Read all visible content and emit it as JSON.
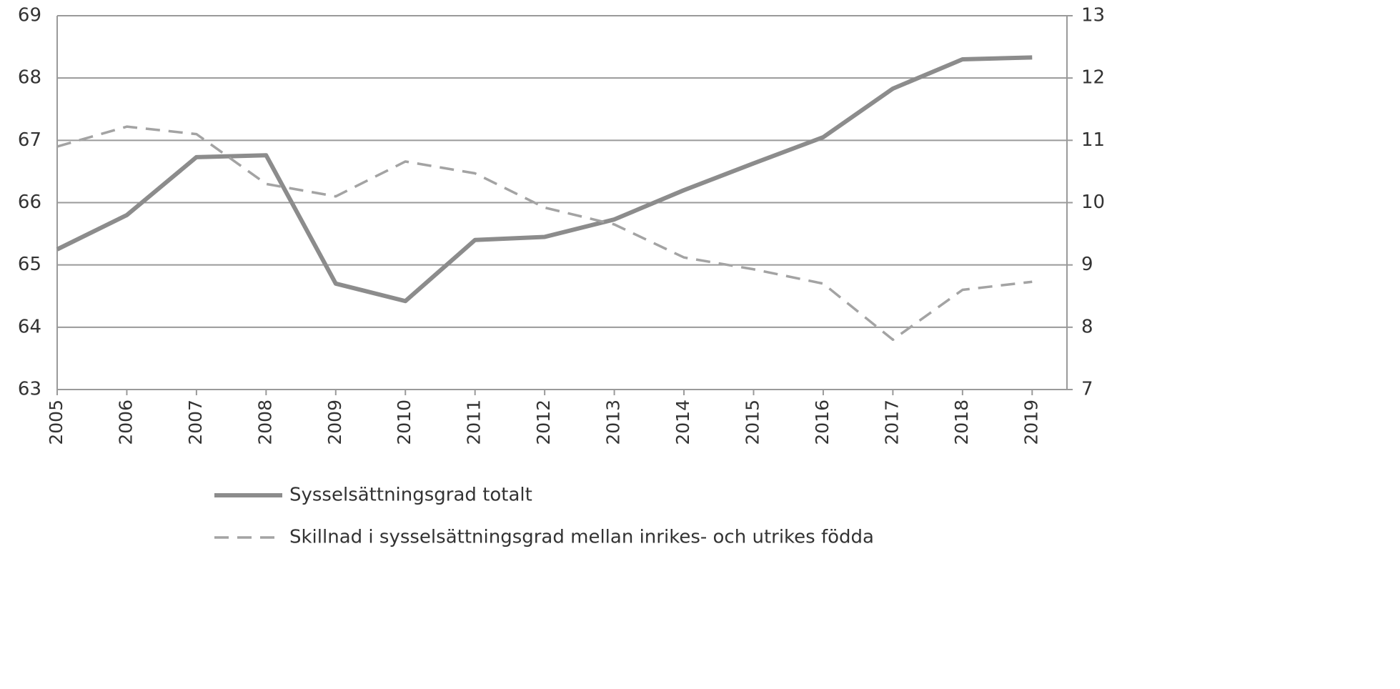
{
  "chart_data": {
    "type": "line",
    "categories": [
      "2005",
      "2006",
      "2007",
      "2008",
      "2009",
      "2010",
      "2011",
      "2012",
      "2013",
      "2014",
      "2015",
      "2016",
      "2017",
      "2018",
      "2019"
    ],
    "series": [
      {
        "name": "Sysselsättningsgrad totalt",
        "color": "#8c8c8c",
        "style": "solid",
        "values": [
          65.25,
          65.8,
          66.73,
          66.76,
          64.7,
          64.42,
          65.4,
          65.45,
          65.73,
          66.2,
          66.63,
          67.05,
          67.83,
          68.3,
          68.33
        ]
      },
      {
        "name": "Skillnad i sysselsättningsgrad mellan inrikes- och utrikes födda",
        "color": "#a3a3a3",
        "style": "dashed",
        "axis": "y2",
        "values": [
          10.9,
          11.22,
          11.1,
          10.3,
          10.1,
          10.66,
          10.47,
          9.92,
          9.65,
          9.12,
          8.93,
          8.7,
          7.8,
          8.6,
          8.73
        ]
      }
    ],
    "ylim": [
      63,
      69
    ],
    "yticks": [
      63,
      64,
      65,
      66,
      67,
      68,
      69
    ],
    "y2lim": [
      7,
      13
    ],
    "y2ticks": [
      7,
      8,
      9,
      10,
      11,
      12,
      13
    ],
    "grid": true,
    "legend": "bottom"
  }
}
